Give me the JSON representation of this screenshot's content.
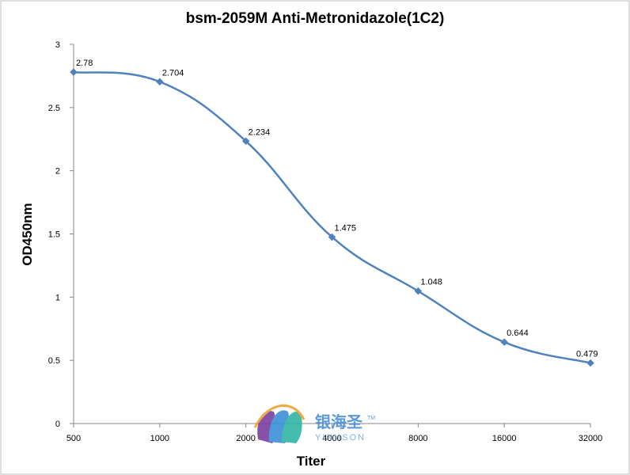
{
  "chart_data": {
    "type": "line",
    "title": "bsm-2059M Anti-Metronidazole(1C2)",
    "xlabel": "Titer",
    "ylabel": "OD450nm",
    "categories": [
      "500",
      "1000",
      "2000",
      "4000",
      "8000",
      "16000",
      "32000"
    ],
    "series": [
      {
        "values": [
          2.78,
          2.704,
          2.234,
          1.475,
          1.048,
          0.644,
          0.479
        ],
        "labels": [
          "2.78",
          "2.704",
          "2.234",
          "1.475",
          "1.048",
          "0.644",
          "0.479"
        ],
        "color": "#4f81bd"
      }
    ],
    "ylim": [
      0,
      3
    ],
    "yticks": [
      0,
      0.5,
      1,
      1.5,
      2,
      2.5,
      3
    ],
    "ytick_labels": [
      "0",
      "0.5",
      "1",
      "1.5",
      "2",
      "2.5",
      "3"
    ],
    "grid": false,
    "legend": "none",
    "smooth": true
  },
  "watermark": {
    "text_cn": "银海圣",
    "text_en": "YINHSON",
    "tm": "TM",
    "colors": [
      "#7a3fa0",
      "#3a8fd6",
      "#2fb5a6",
      "#f0a030"
    ]
  }
}
